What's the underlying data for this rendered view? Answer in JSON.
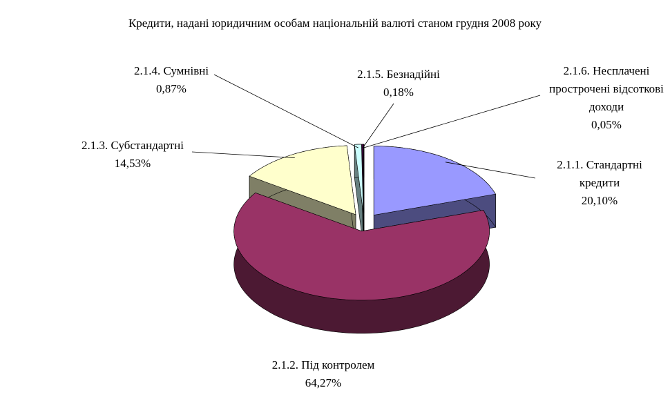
{
  "chart_data": {
    "type": "pie3d",
    "title": "Кредити, надані юридичним особам  національній валюті станом грудня 2008 року",
    "categories": [
      "2.1.1. Стандартні кредити",
      "2.1.2. Під контролем",
      "2.1.3. Субстандартні",
      "2.1.4. Сумнівні",
      "2.1.5. Безнадійні",
      "2.1.6. Несплачені прострочені відсоткові доходи"
    ],
    "values": [
      20.1,
      64.27,
      14.53,
      0.87,
      0.18,
      0.05
    ],
    "value_labels": [
      "20,10%",
      "64,27%",
      "14,53%",
      "0,87%",
      "0,18%",
      "0,05%"
    ],
    "colors": [
      "#9999ff",
      "#993366",
      "#ffffcc",
      "#ccffff",
      "#660066",
      "#ff8080"
    ]
  }
}
